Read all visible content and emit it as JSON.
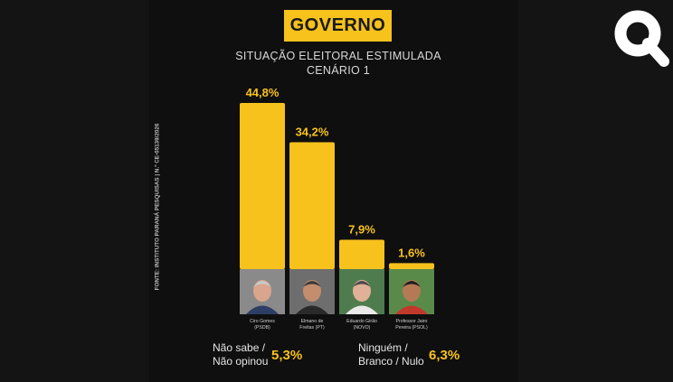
{
  "header": {
    "title": "GOVERNO",
    "subtitle_line1": "SITUAÇÃO ELEITORAL ESTIMULADA",
    "subtitle_line2": "CENÁRIO 1"
  },
  "source": "FONTE: INSTITUTO PARANÁ PESQUISAS | N.º CE-05139/2026",
  "colors": {
    "accent": "#f8c21c",
    "background": "#141414"
  },
  "logo": {
    "icon": "q-logo-icon"
  },
  "chart_data": {
    "type": "bar",
    "categories": [
      "Ciro Gomes (PSDB)",
      "Elmano de Freitas (PT)",
      "Eduardo Girão (NOVO)",
      "Professor Jairo Pereira (PSOL)"
    ],
    "candidates": [
      {
        "name_line1": "Ciro Gomes",
        "name_line2": "(PSDB)",
        "value": 44.8,
        "label": "44,8%",
        "photo_bg": "#8a8a8a",
        "skin": "#d9a58c",
        "shirt": "#2c3e66",
        "hair": "#c9c9c9"
      },
      {
        "name_line1": "Elmano de",
        "name_line2": "Freitas (PT)",
        "value": 34.2,
        "label": "34,2%",
        "photo_bg": "#6e6e6e",
        "skin": "#c48d6e",
        "shirt": "#2a2a2a",
        "hair": "#3a3a3a"
      },
      {
        "name_line1": "Eduardo Girão",
        "name_line2": "(NOVO)",
        "value": 7.9,
        "label": "7,9%",
        "photo_bg": "#4f7c4e",
        "skin": "#e0b196",
        "shirt": "#e9e9e9",
        "hair": "#4a4a4a"
      },
      {
        "name_line1": "Professor Jairo",
        "name_line2": "Pereira (PSOL)",
        "value": 1.6,
        "label": "1,6%",
        "photo_bg": "#5a8a4a",
        "skin": "#b47a55",
        "shirt": "#c0392b",
        "hair": "#1e1e1e"
      }
    ],
    "values": [
      44.8,
      34.2,
      7.9,
      1.6
    ],
    "title": "GOVERNO",
    "xlabel": "",
    "ylabel": ""
  },
  "notes": [
    {
      "label_line1": "Não sabe /",
      "label_line2": "Não opinou",
      "value": "5,3%"
    },
    {
      "label_line1": "Ninguém /",
      "label_line2": "Branco / Nulo",
      "value": "6,3%"
    }
  ]
}
